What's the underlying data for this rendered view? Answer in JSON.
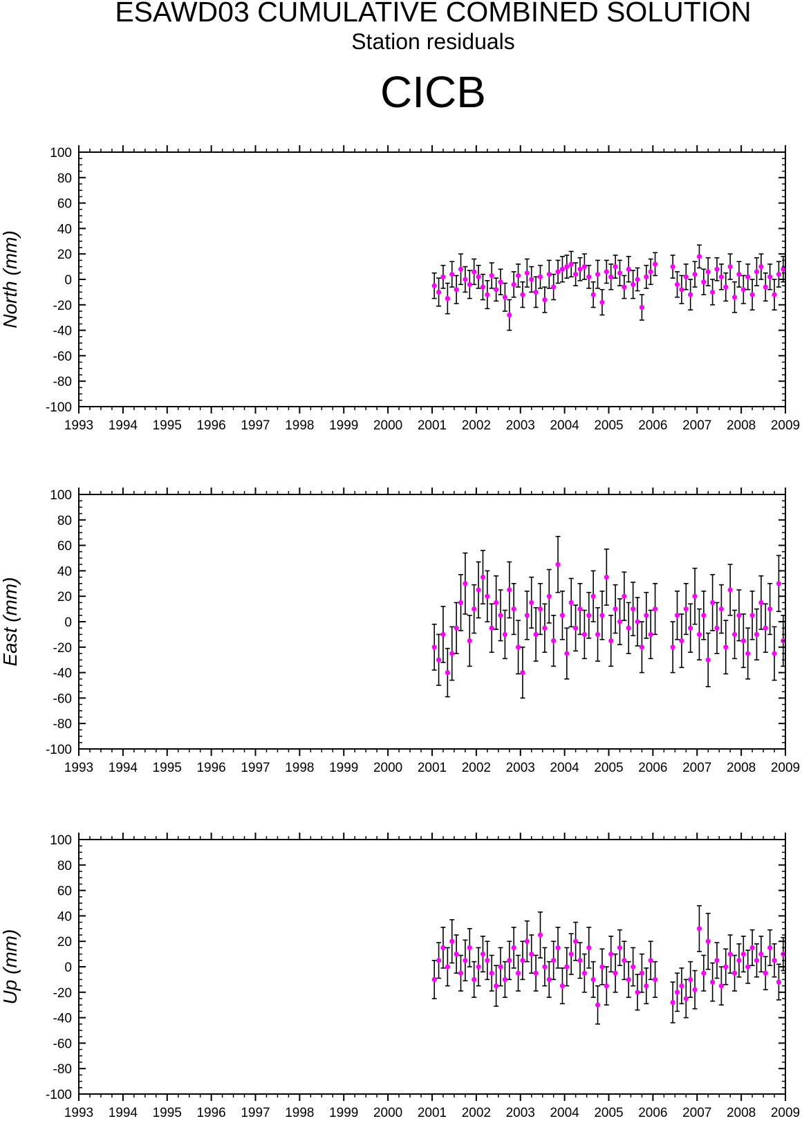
{
  "header": {
    "title": "ESAWD03 CUMULATIVE COMBINED SOLUTION",
    "subtitle": "Station residuals",
    "station": "CICB"
  },
  "colors": {
    "marker": "#ff00ff",
    "errorbar": "#000000",
    "axis": "#000000"
  },
  "chart_data": [
    {
      "type": "scatter",
      "component": "north",
      "ylabel": "North (mm)",
      "xlim": [
        1993,
        2009
      ],
      "ylim": [
        -100,
        100
      ],
      "xticks": [
        "1993",
        "1994",
        "1995",
        "1996",
        "1997",
        "1998",
        "1999",
        "2000",
        "2001",
        "2002",
        "2003",
        "2004",
        "2005",
        "2006",
        "2007",
        "2008",
        "2009"
      ],
      "yticks": [
        "100",
        "80",
        "60",
        "40",
        "20",
        "0",
        "-20",
        "-40",
        "-60",
        "-80",
        "-100"
      ],
      "grid": false,
      "error_bars": true,
      "segments": [
        {
          "x": [
            2001.05,
            2001.15,
            2001.25,
            2001.35,
            2001.45,
            2001.55,
            2001.65,
            2001.75,
            2001.85,
            2001.95,
            2002.05,
            2002.15,
            2002.25,
            2002.35,
            2002.45,
            2002.55,
            2002.65,
            2002.75,
            2002.85,
            2002.95,
            2003.05,
            2003.15,
            2003.25,
            2003.35,
            2003.45,
            2003.55,
            2003.65,
            2003.75,
            2003.85,
            2003.95,
            2004.05,
            2004.15,
            2004.25,
            2004.35,
            2004.45,
            2004.55,
            2004.65,
            2004.75,
            2004.85,
            2004.95,
            2005.05,
            2005.15,
            2005.25,
            2005.35,
            2005.45,
            2005.55,
            2005.65,
            2005.75,
            2005.85,
            2005.95,
            2006.05
          ],
          "y": [
            -5,
            -10,
            2,
            -15,
            4,
            -8,
            8,
            0,
            -4,
            6,
            2,
            -6,
            -12,
            3,
            -8,
            -2,
            -14,
            -28,
            -4,
            3,
            -12,
            5,
            0,
            -10,
            2,
            -16,
            4,
            -6,
            6,
            8,
            10,
            12,
            4,
            8,
            10,
            2,
            -12,
            4,
            -18,
            6,
            2,
            10,
            5,
            -6,
            8,
            -4,
            0,
            -22,
            2,
            6,
            12
          ],
          "e": [
            10,
            11,
            9,
            12,
            10,
            11,
            12,
            10,
            11,
            10,
            9,
            10,
            11,
            10,
            9,
            10,
            11,
            12,
            10,
            9,
            10,
            11,
            10,
            12,
            9,
            10,
            11,
            10,
            9,
            10,
            9,
            10,
            9,
            9,
            10,
            9,
            10,
            11,
            10,
            9,
            10,
            9,
            10,
            9,
            10,
            11,
            9,
            10,
            9,
            10,
            9
          ]
        },
        {
          "x": [
            2006.45,
            2006.55,
            2006.65,
            2006.75,
            2006.85,
            2006.95,
            2007.05,
            2007.15,
            2007.25,
            2007.35,
            2007.45,
            2007.55,
            2007.65,
            2007.75,
            2007.85,
            2007.95,
            2008.05,
            2008.15,
            2008.25,
            2008.35,
            2008.45,
            2008.55,
            2008.65,
            2008.75,
            2008.85,
            2008.95
          ],
          "y": [
            10,
            -4,
            -8,
            2,
            -12,
            4,
            18,
            -2,
            6,
            -10,
            8,
            2,
            -6,
            10,
            -14,
            4,
            -8,
            2,
            -12,
            6,
            10,
            -6,
            2,
            -12,
            4,
            8
          ],
          "e": [
            9,
            10,
            11,
            10,
            12,
            10,
            9,
            10,
            11,
            10,
            9,
            10,
            11,
            10,
            12,
            10,
            11,
            10,
            12,
            11,
            10,
            11,
            10,
            12,
            10,
            10
          ]
        }
      ]
    },
    {
      "type": "scatter",
      "component": "east",
      "ylabel": "East (mm)",
      "xlim": [
        1993,
        2009
      ],
      "ylim": [
        -100,
        100
      ],
      "xticks": [
        "1993",
        "1994",
        "1995",
        "1996",
        "1997",
        "1998",
        "1999",
        "2000",
        "2001",
        "2002",
        "2003",
        "2004",
        "2005",
        "2006",
        "2007",
        "2008",
        "2009"
      ],
      "yticks": [
        "100",
        "80",
        "60",
        "40",
        "20",
        "0",
        "-20",
        "-40",
        "-60",
        "-80",
        "-100"
      ],
      "grid": false,
      "error_bars": true,
      "segments": [
        {
          "x": [
            2001.05,
            2001.15,
            2001.25,
            2001.35,
            2001.45,
            2001.55,
            2001.65,
            2001.75,
            2001.85,
            2001.95,
            2002.05,
            2002.15,
            2002.25,
            2002.35,
            2002.45,
            2002.55,
            2002.65,
            2002.75,
            2002.85,
            2002.95,
            2003.05,
            2003.15,
            2003.25,
            2003.35,
            2003.45,
            2003.55,
            2003.65,
            2003.75,
            2003.85,
            2003.95,
            2004.05,
            2004.15,
            2004.25,
            2004.35,
            2004.45,
            2004.55,
            2004.65,
            2004.75,
            2004.85,
            2004.95,
            2005.05,
            2005.15,
            2005.25,
            2005.35,
            2005.45,
            2005.55,
            2005.65,
            2005.75,
            2005.85,
            2005.95,
            2006.05
          ],
          "y": [
            -20,
            -30,
            -10,
            -40,
            -25,
            -5,
            15,
            30,
            -15,
            10,
            25,
            35,
            20,
            -5,
            15,
            5,
            -10,
            25,
            10,
            -20,
            -40,
            5,
            15,
            -10,
            10,
            -5,
            20,
            -15,
            45,
            5,
            -25,
            15,
            -5,
            10,
            -10,
            5,
            20,
            -10,
            5,
            35,
            -15,
            10,
            0,
            20,
            -5,
            10,
            0,
            -20,
            5,
            -10,
            10
          ],
          "e": [
            18,
            20,
            22,
            19,
            21,
            20,
            22,
            24,
            20,
            19,
            22,
            21,
            20,
            19,
            21,
            20,
            19,
            22,
            20,
            21,
            20,
            19,
            20,
            21,
            20,
            19,
            21,
            20,
            22,
            19,
            20,
            19,
            18,
            20,
            19,
            18,
            20,
            21,
            19,
            22,
            20,
            19,
            18,
            19,
            20,
            21,
            19,
            20,
            18,
            19,
            20
          ]
        },
        {
          "x": [
            2006.45,
            2006.55,
            2006.65,
            2006.75,
            2006.85,
            2006.95,
            2007.05,
            2007.15,
            2007.25,
            2007.35,
            2007.45,
            2007.55,
            2007.65,
            2007.75,
            2007.85,
            2007.95,
            2008.05,
            2008.15,
            2008.25,
            2008.35,
            2008.45,
            2008.55,
            2008.65,
            2008.75,
            2008.85,
            2008.95
          ],
          "y": [
            -20,
            5,
            -15,
            10,
            -5,
            20,
            -10,
            5,
            -30,
            15,
            -5,
            10,
            -20,
            25,
            -10,
            5,
            -15,
            -25,
            5,
            -10,
            15,
            -5,
            10,
            -25,
            30,
            -15
          ],
          "e": [
            20,
            19,
            21,
            20,
            19,
            22,
            20,
            19,
            21,
            22,
            20,
            19,
            21,
            20,
            19,
            20,
            21,
            20,
            19,
            20,
            21,
            19,
            20,
            21,
            22,
            20
          ]
        }
      ]
    },
    {
      "type": "scatter",
      "component": "up",
      "ylabel": "Up (mm)",
      "xlim": [
        1993,
        2009
      ],
      "ylim": [
        -100,
        100
      ],
      "xticks": [
        "1993",
        "1994",
        "1995",
        "1996",
        "1997",
        "1998",
        "1999",
        "2000",
        "2001",
        "2002",
        "2003",
        "2004",
        "2005",
        "2006",
        "2007",
        "2008",
        "2009"
      ],
      "yticks": [
        "100",
        "80",
        "60",
        "40",
        "20",
        "0",
        "-20",
        "-40",
        "-60",
        "-80",
        "-100"
      ],
      "grid": false,
      "error_bars": true,
      "segments": [
        {
          "x": [
            2001.05,
            2001.15,
            2001.25,
            2001.35,
            2001.45,
            2001.55,
            2001.65,
            2001.75,
            2001.85,
            2001.95,
            2002.05,
            2002.15,
            2002.25,
            2002.35,
            2002.45,
            2002.55,
            2002.65,
            2002.75,
            2002.85,
            2002.95,
            2003.05,
            2003.15,
            2003.25,
            2003.35,
            2003.45,
            2003.55,
            2003.65,
            2003.75,
            2003.85,
            2003.95,
            2004.05,
            2004.15,
            2004.25,
            2004.35,
            2004.45,
            2004.55,
            2004.65,
            2004.75,
            2004.85,
            2004.95,
            2005.05,
            2005.15,
            2005.25,
            2005.35,
            2005.45,
            2005.55,
            2005.65,
            2005.75,
            2005.85,
            2005.95,
            2006.05
          ],
          "y": [
            -10,
            5,
            15,
            0,
            20,
            10,
            -5,
            5,
            15,
            -10,
            0,
            10,
            5,
            -5,
            -15,
            0,
            -10,
            5,
            15,
            -5,
            5,
            20,
            10,
            -5,
            25,
            0,
            -10,
            5,
            15,
            -15,
            0,
            10,
            20,
            5,
            -5,
            15,
            -10,
            -30,
            0,
            -15,
            10,
            -5,
            15,
            5,
            -10,
            0,
            -20,
            -5,
            -15,
            5,
            -10
          ],
          "e": [
            15,
            14,
            16,
            15,
            17,
            15,
            14,
            16,
            15,
            14,
            15,
            14,
            15,
            14,
            16,
            15,
            14,
            15,
            16,
            14,
            15,
            16,
            15,
            14,
            18,
            15,
            14,
            15,
            16,
            14,
            15,
            16,
            15,
            14,
            15,
            16,
            14,
            15,
            14,
            15,
            14,
            15,
            14,
            15,
            14,
            15,
            14,
            15,
            14,
            15,
            14
          ]
        },
        {
          "x": [
            2006.45,
            2006.55,
            2006.65,
            2006.75,
            2006.85,
            2006.95,
            2007.05,
            2007.15,
            2007.25,
            2007.35,
            2007.45,
            2007.55,
            2007.65,
            2007.75,
            2007.85,
            2007.95,
            2008.05,
            2008.15,
            2008.25,
            2008.35,
            2008.45,
            2008.55,
            2008.65,
            2008.75,
            2008.85,
            2008.95
          ],
          "y": [
            -28,
            -20,
            -15,
            -25,
            -10,
            -18,
            30,
            -5,
            20,
            -12,
            5,
            -15,
            0,
            10,
            -5,
            5,
            10,
            0,
            15,
            5,
            10,
            -5,
            15,
            5,
            -12,
            10
          ],
          "e": [
            16,
            15,
            14,
            15,
            14,
            15,
            18,
            14,
            22,
            15,
            14,
            15,
            14,
            15,
            14,
            13,
            14,
            13,
            14,
            13,
            14,
            13,
            14,
            13,
            14,
            13
          ]
        }
      ]
    }
  ]
}
